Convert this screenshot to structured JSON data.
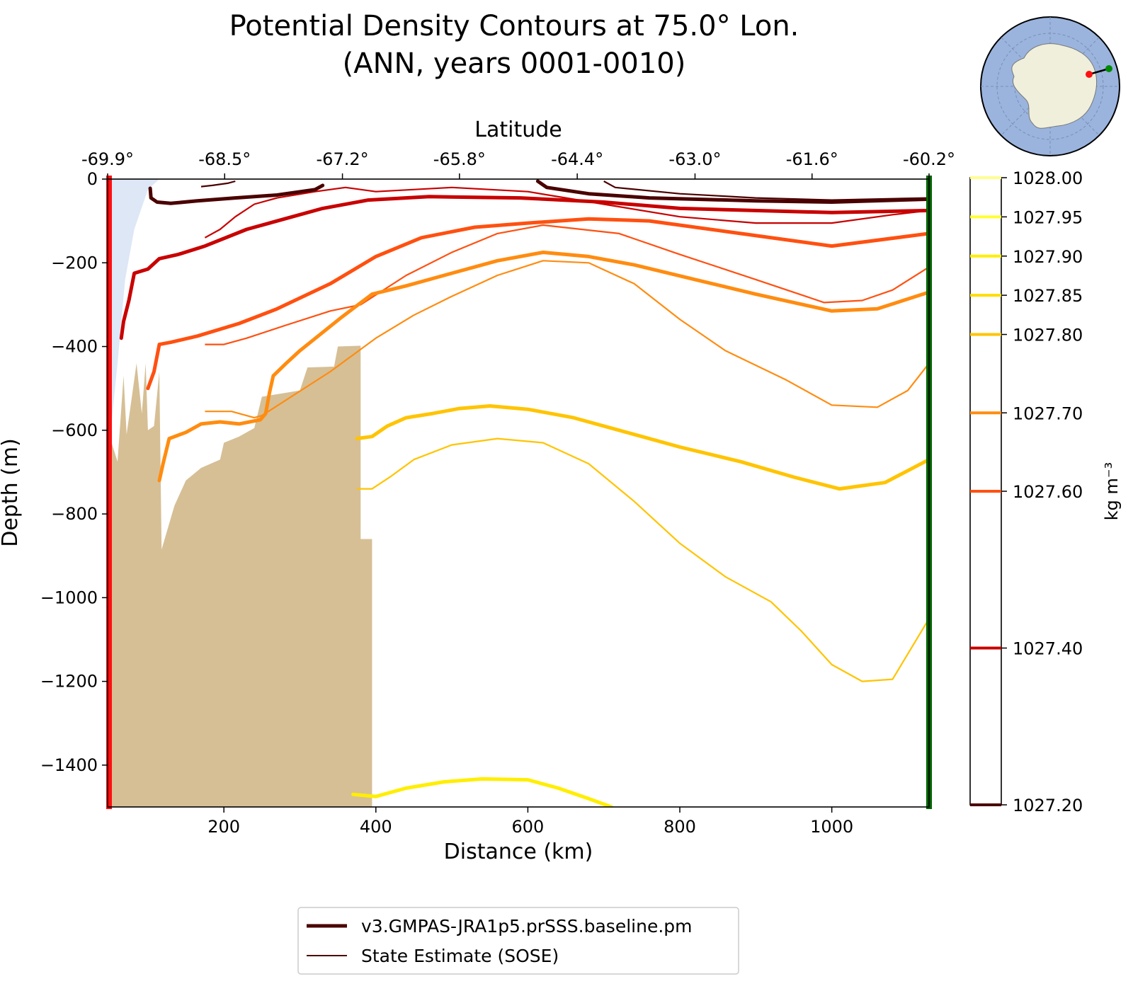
{
  "chart_data": {
    "type": "line",
    "title_line1": "Potential Density Contours at 75.0° Lon.",
    "title_line2": "(ANN, years 0001-0010)",
    "xlabel": "Distance (km)",
    "ylabel": "Depth (m)",
    "top_xlabel": "Latitude",
    "xlim": [
      47,
      1128
    ],
    "ylim": [
      -1500,
      0
    ],
    "xticks": [
      200,
      400,
      600,
      800,
      1000
    ],
    "yticks": [
      0,
      -200,
      -400,
      -600,
      -800,
      -1000,
      -1200,
      -1400
    ],
    "top_tick_positions": [
      47,
      201,
      356,
      510,
      665,
      820,
      974,
      1128
    ],
    "top_tick_labels": [
      "-69.9°",
      "-68.5°",
      "-67.2°",
      "-65.8°",
      "-64.4°",
      "-63.0°",
      "-61.6°",
      "-60.2°"
    ],
    "colorbar": {
      "label": "kg m⁻³",
      "range": [
        1027.2,
        1028.0
      ],
      "ticks": [
        1028.0,
        1027.95,
        1027.9,
        1027.85,
        1027.8,
        1027.7,
        1027.6,
        1027.4,
        1027.2
      ],
      "tick_labels": [
        "1028.00",
        "1027.95",
        "1027.90",
        "1027.85",
        "1027.80",
        "1027.70",
        "1027.60",
        "1027.40",
        "1027.20"
      ],
      "colors": [
        "#fffe90",
        "#ffff33",
        "#ffee00",
        "#ffdd00",
        "#ffc400",
        "#ff8c10",
        "#ff5010",
        "#c80000",
        "#4a0000"
      ]
    },
    "legend": {
      "placement": "bottom-center",
      "entries": [
        {
          "name": "v3.GMPAS-JRA1p5.prSSS.baseline.pm",
          "color": "#4a0000",
          "style": "thick"
        },
        {
          "name": "State Estimate (SOSE)",
          "color": "#4a0000",
          "style": "thin"
        }
      ]
    },
    "model_contours": [
      {
        "level": 1027.2,
        "color": "#4a0000",
        "points": [
          [
            103,
            -22
          ],
          [
            104,
            -45
          ],
          [
            112,
            -55
          ],
          [
            130,
            -58
          ],
          [
            165,
            -52
          ],
          [
            215,
            -45
          ],
          [
            270,
            -38
          ],
          [
            320,
            -25
          ],
          [
            330,
            -15
          ]
        ]
      },
      {
        "level": 1027.2,
        "color": "#4a0000",
        "points": [
          [
            613,
            -5
          ],
          [
            625,
            -20
          ],
          [
            680,
            -35
          ],
          [
            760,
            -45
          ],
          [
            900,
            -52
          ],
          [
            1000,
            -55
          ],
          [
            1128,
            -48
          ]
        ]
      },
      {
        "level": 1027.4,
        "color": "#c80000",
        "points": [
          [
            65,
            -380
          ],
          [
            68,
            -340
          ],
          [
            75,
            -290
          ],
          [
            82,
            -225
          ],
          [
            100,
            -215
          ],
          [
            115,
            -190
          ],
          [
            140,
            -180
          ],
          [
            175,
            -160
          ],
          [
            230,
            -120
          ],
          [
            280,
            -95
          ],
          [
            330,
            -70
          ],
          [
            390,
            -50
          ],
          [
            470,
            -42
          ],
          [
            590,
            -45
          ],
          [
            700,
            -55
          ],
          [
            800,
            -70
          ],
          [
            1000,
            -80
          ],
          [
            1128,
            -75
          ]
        ]
      },
      {
        "level": 1027.6,
        "color": "#ff5010",
        "points": [
          [
            100,
            -500
          ],
          [
            108,
            -460
          ],
          [
            115,
            -395
          ],
          [
            130,
            -390
          ],
          [
            165,
            -375
          ],
          [
            220,
            -345
          ],
          [
            270,
            -310
          ],
          [
            340,
            -250
          ],
          [
            400,
            -185
          ],
          [
            460,
            -140
          ],
          [
            530,
            -115
          ],
          [
            600,
            -105
          ],
          [
            680,
            -95
          ],
          [
            760,
            -100
          ],
          [
            880,
            -130
          ],
          [
            1000,
            -160
          ],
          [
            1128,
            -130
          ]
        ]
      },
      {
        "level": 1027.7,
        "color": "#ff8c10",
        "points": [
          [
            115,
            -720
          ],
          [
            120,
            -680
          ],
          [
            128,
            -620
          ],
          [
            150,
            -605
          ],
          [
            170,
            -585
          ],
          [
            195,
            -580
          ],
          [
            220,
            -585
          ],
          [
            248,
            -575
          ],
          [
            255,
            -560
          ],
          [
            260,
            -510
          ],
          [
            265,
            -470
          ],
          [
            282,
            -440
          ],
          [
            300,
            -410
          ],
          [
            355,
            -330
          ],
          [
            395,
            -275
          ],
          [
            440,
            -255
          ],
          [
            500,
            -225
          ],
          [
            560,
            -195
          ],
          [
            620,
            -175
          ],
          [
            680,
            -185
          ],
          [
            740,
            -205
          ],
          [
            820,
            -240
          ],
          [
            900,
            -275
          ],
          [
            1000,
            -315
          ],
          [
            1060,
            -310
          ],
          [
            1128,
            -270
          ]
        ]
      },
      {
        "level": 1027.8,
        "color": "#ffc400",
        "points": [
          [
            375,
            -620
          ],
          [
            395,
            -615
          ],
          [
            415,
            -590
          ],
          [
            440,
            -570
          ],
          [
            475,
            -560
          ],
          [
            510,
            -548
          ],
          [
            550,
            -542
          ],
          [
            600,
            -550
          ],
          [
            660,
            -570
          ],
          [
            720,
            -600
          ],
          [
            800,
            -640
          ],
          [
            880,
            -675
          ],
          [
            950,
            -712
          ],
          [
            1010,
            -740
          ],
          [
            1070,
            -725
          ],
          [
            1128,
            -670
          ]
        ]
      },
      {
        "level": 1027.9,
        "color": "#ffee00",
        "points": [
          [
            370,
            -1470
          ],
          [
            400,
            -1475
          ],
          [
            440,
            -1455
          ],
          [
            490,
            -1440
          ],
          [
            540,
            -1433
          ],
          [
            600,
            -1435
          ],
          [
            640,
            -1455
          ],
          [
            680,
            -1480
          ],
          [
            710,
            -1500
          ]
        ]
      }
    ],
    "sose_contours": [
      {
        "level": 1027.2,
        "color": "#4a0000",
        "points": [
          [
            170,
            -18
          ],
          [
            185,
            -15
          ],
          [
            205,
            -10
          ],
          [
            215,
            -5
          ]
        ]
      },
      {
        "level": 1027.2,
        "color": "#4a0000",
        "points": [
          [
            700,
            -5
          ],
          [
            715,
            -20
          ],
          [
            800,
            -35
          ],
          [
            900,
            -45
          ],
          [
            1000,
            -50
          ],
          [
            1128,
            -45
          ]
        ]
      },
      {
        "level": 1027.4,
        "color": "#c80000",
        "points": [
          [
            175,
            -140
          ],
          [
            195,
            -120
          ],
          [
            215,
            -90
          ],
          [
            240,
            -60
          ],
          [
            270,
            -45
          ],
          [
            320,
            -30
          ],
          [
            360,
            -20
          ],
          [
            400,
            -30
          ],
          [
            500,
            -20
          ],
          [
            600,
            -30
          ],
          [
            700,
            -60
          ],
          [
            800,
            -90
          ],
          [
            900,
            -105
          ],
          [
            1000,
            -105
          ],
          [
            1080,
            -85
          ],
          [
            1128,
            -75
          ]
        ]
      },
      {
        "level": 1027.6,
        "color": "#ff5010",
        "points": [
          [
            175,
            -395
          ],
          [
            200,
            -395
          ],
          [
            230,
            -380
          ],
          [
            280,
            -350
          ],
          [
            340,
            -315
          ],
          [
            380,
            -300
          ],
          [
            440,
            -230
          ],
          [
            500,
            -175
          ],
          [
            560,
            -130
          ],
          [
            620,
            -110
          ],
          [
            720,
            -130
          ],
          [
            800,
            -180
          ],
          [
            900,
            -240
          ],
          [
            990,
            -295
          ],
          [
            1040,
            -290
          ],
          [
            1080,
            -265
          ],
          [
            1128,
            -210
          ]
        ]
      },
      {
        "level": 1027.7,
        "color": "#ff8c10",
        "points": [
          [
            175,
            -555
          ],
          [
            210,
            -555
          ],
          [
            240,
            -570
          ],
          [
            250,
            -565
          ],
          [
            340,
            -460
          ],
          [
            400,
            -380
          ],
          [
            450,
            -325
          ],
          [
            500,
            -280
          ],
          [
            560,
            -230
          ],
          [
            620,
            -195
          ],
          [
            680,
            -200
          ],
          [
            740,
            -250
          ],
          [
            800,
            -335
          ],
          [
            860,
            -410
          ],
          [
            940,
            -480
          ],
          [
            1000,
            -540
          ],
          [
            1060,
            -545
          ],
          [
            1100,
            -505
          ],
          [
            1128,
            -440
          ]
        ]
      },
      {
        "level": 1027.8,
        "color": "#ffc400",
        "points": [
          [
            375,
            -740
          ],
          [
            395,
            -740
          ],
          [
            420,
            -710
          ],
          [
            450,
            -670
          ],
          [
            500,
            -635
          ],
          [
            560,
            -620
          ],
          [
            620,
            -630
          ],
          [
            680,
            -680
          ],
          [
            740,
            -770
          ],
          [
            800,
            -870
          ],
          [
            860,
            -950
          ],
          [
            920,
            -1010
          ],
          [
            960,
            -1080
          ],
          [
            1000,
            -1160
          ],
          [
            1040,
            -1200
          ],
          [
            1080,
            -1195
          ],
          [
            1128,
            -1050
          ]
        ]
      }
    ],
    "bathymetry": [
      [
        47,
        -1500
      ],
      [
        47,
        -600
      ],
      [
        60,
        -675
      ],
      [
        68,
        -470
      ],
      [
        72,
        -610
      ],
      [
        85,
        -440
      ],
      [
        92,
        -560
      ],
      [
        97,
        -440
      ],
      [
        100,
        -600
      ],
      [
        108,
        -590
      ],
      [
        115,
        -460
      ],
      [
        118,
        -885
      ],
      [
        135,
        -780
      ],
      [
        150,
        -720
      ],
      [
        170,
        -690
      ],
      [
        195,
        -670
      ],
      [
        200,
        -630
      ],
      [
        220,
        -615
      ],
      [
        240,
        -595
      ],
      [
        250,
        -520
      ],
      [
        300,
        -505
      ],
      [
        310,
        -450
      ],
      [
        345,
        -448
      ],
      [
        350,
        -400
      ],
      [
        380,
        -398
      ],
      [
        380,
        -860
      ],
      [
        395,
        -860
      ],
      [
        395,
        -1500
      ]
    ],
    "ice_shelf": [
      [
        47,
        0
      ],
      [
        115,
        0
      ],
      [
        100,
        -25
      ],
      [
        82,
        -120
      ],
      [
        70,
        -240
      ],
      [
        60,
        -440
      ],
      [
        50,
        -620
      ],
      [
        47,
        -620
      ]
    ],
    "start_marker_color": "#ff1010",
    "end_marker_color": "#006400"
  },
  "inset_map": {
    "ocean_color": "#9ab4de",
    "land_color": "#f0efdc",
    "point_start_color": "#ff1010",
    "point_end_color": "#008a00"
  }
}
